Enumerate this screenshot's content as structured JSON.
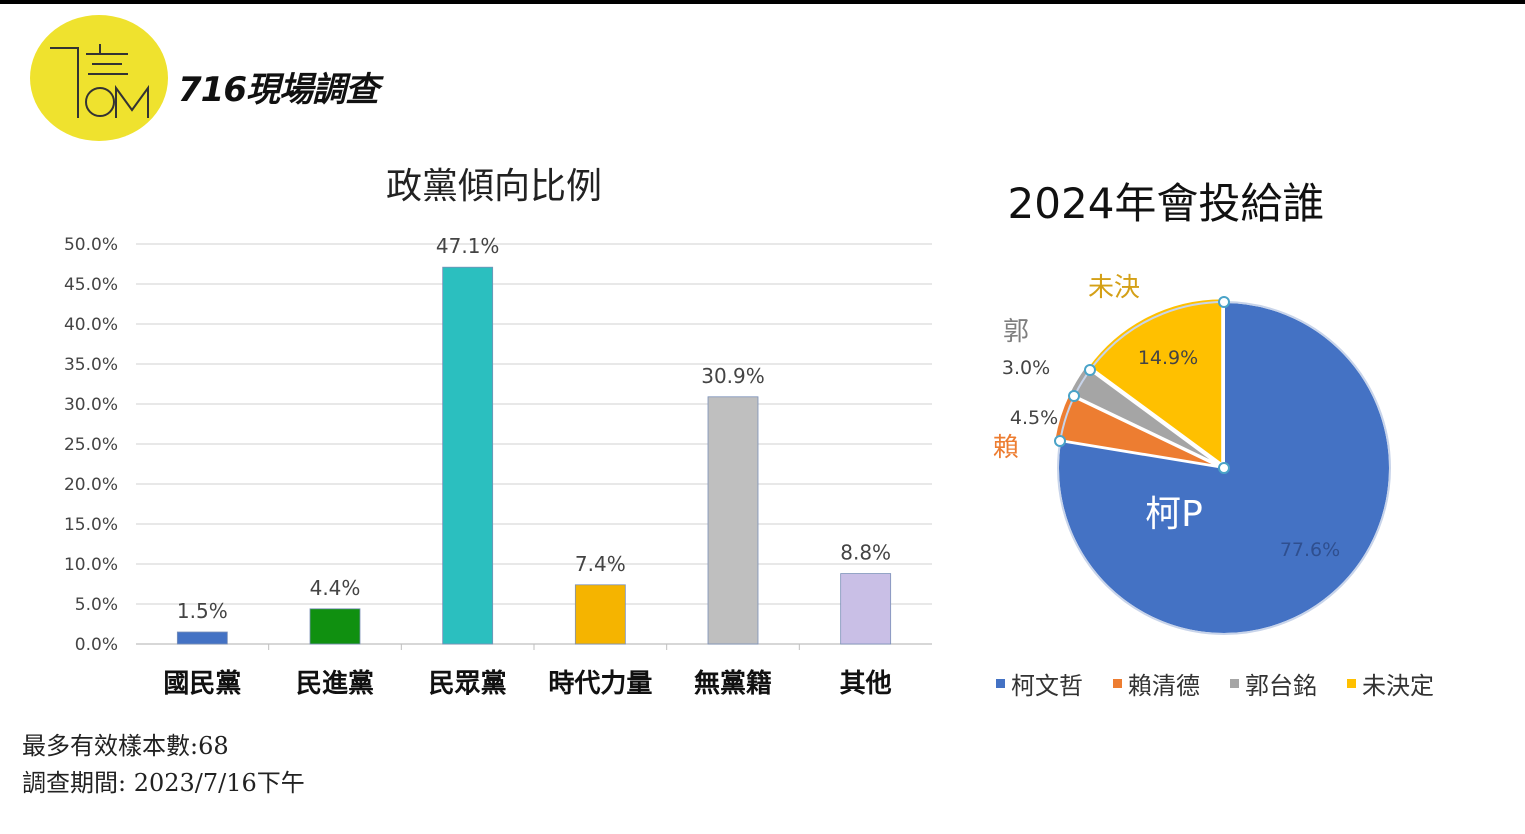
{
  "header": {
    "brand": "716現場調查"
  },
  "colors": {
    "logo_yellow": "#efe22e",
    "kmt": "#4472c4",
    "dpp": "#109010",
    "tpp": "#2bbfbf",
    "npp": "#f5b400",
    "none": "#bfbfbf",
    "other": "#c9bfe6",
    "pie_ko": "#4472c4",
    "pie_lai": "#ed7d31",
    "pie_kuo": "#a5a5a5",
    "pie_undecided": "#ffc000"
  },
  "chart_data": [
    {
      "type": "bar",
      "title": "政黨傾向比例",
      "categories": [
        "國民黨",
        "民進黨",
        "民眾黨",
        "時代力量",
        "無黨籍",
        "其他"
      ],
      "values": [
        1.5,
        4.4,
        47.1,
        7.4,
        30.9,
        8.8
      ],
      "value_labels": [
        "1.5%",
        "4.4%",
        "47.1%",
        "7.4%",
        "30.9%",
        "8.8%"
      ],
      "ylim": [
        0,
        50
      ],
      "y_ticks": [
        "0.0%",
        "5.0%",
        "10.0%",
        "15.0%",
        "20.0%",
        "25.0%",
        "30.0%",
        "35.0%",
        "40.0%",
        "45.0%",
        "50.0%"
      ],
      "grid": true,
      "xlabel": "",
      "ylabel": ""
    },
    {
      "type": "pie",
      "title": "2024年會投給誰",
      "labels": [
        "柯文哲",
        "賴清德",
        "郭台銘",
        "未決定"
      ],
      "values": [
        77.6,
        4.5,
        3.0,
        14.9
      ],
      "value_labels": [
        "77.6%",
        "4.5%",
        "3.0%",
        "14.9%"
      ],
      "slice_annotations": [
        "柯P",
        "賴",
        "郭",
        "未決"
      ],
      "legend_position": "bottom"
    }
  ],
  "footer": {
    "sample_size": "最多有效樣本數:68",
    "survey_period": "調查期間: 2023/7/16下午"
  }
}
